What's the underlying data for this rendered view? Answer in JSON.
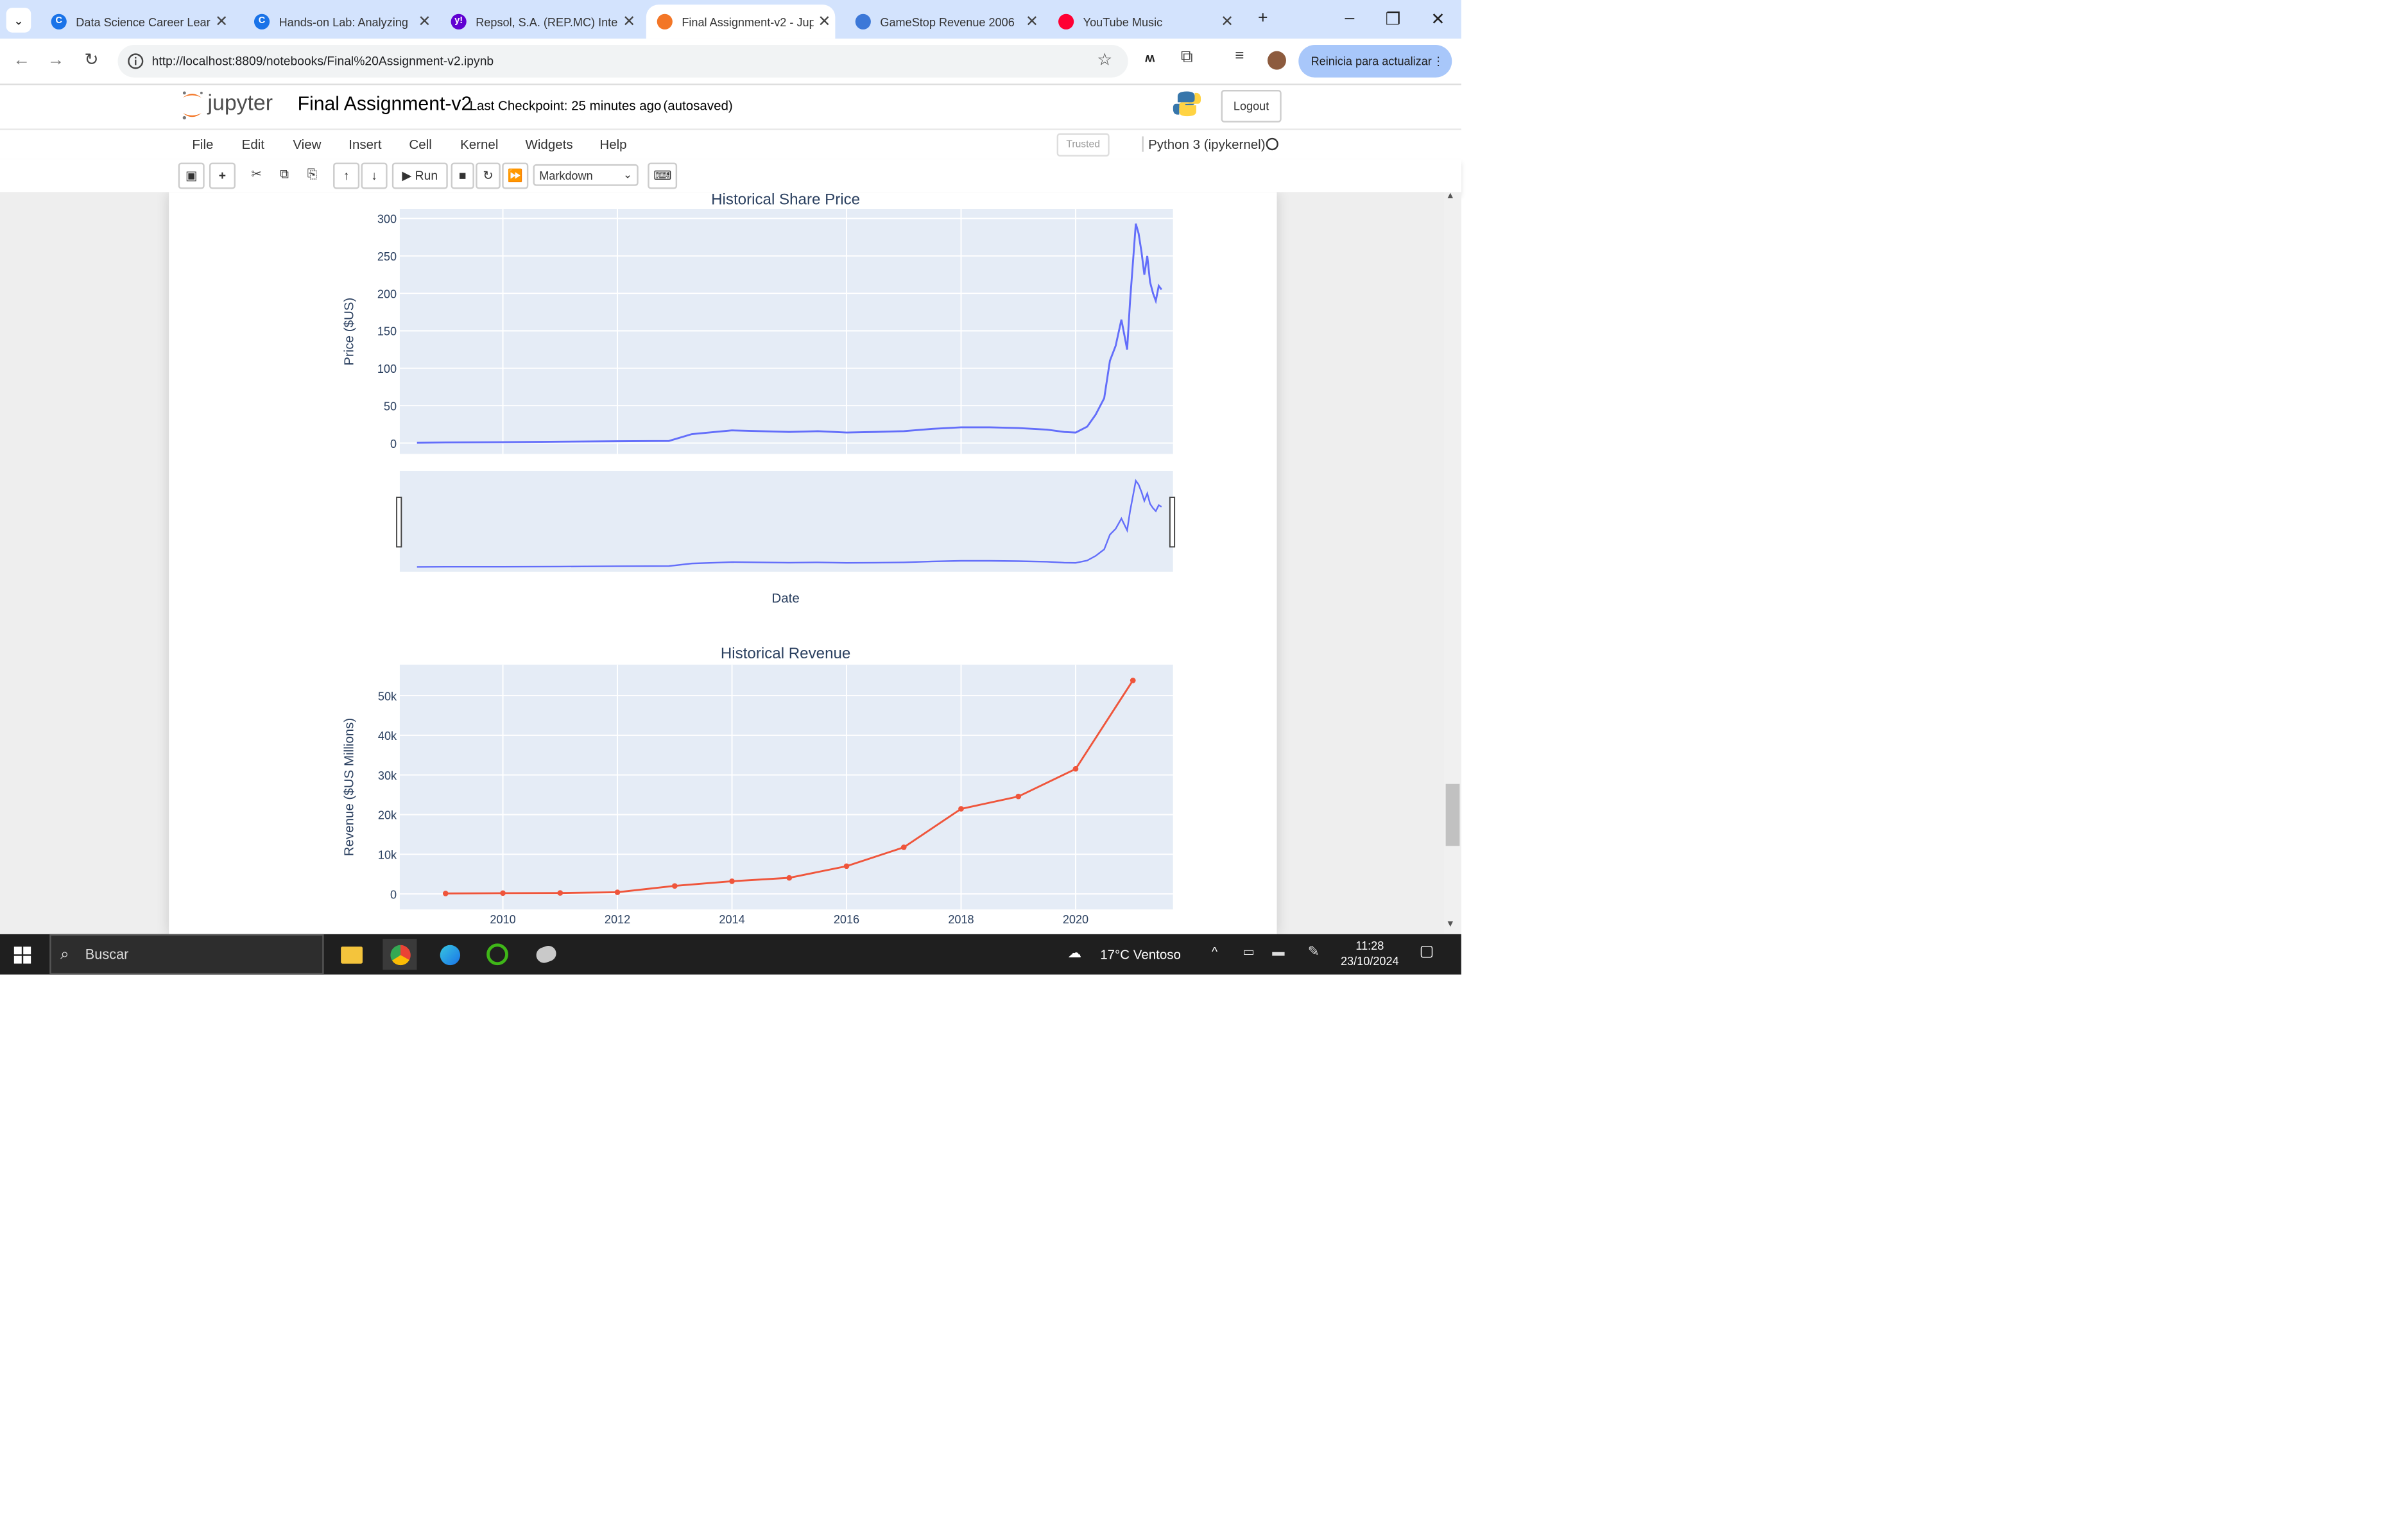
{
  "browser": {
    "tabs": [
      {
        "title": "Data Science Career Lear",
        "favicon_color": "#1a73e8",
        "favicon_glyph": "C",
        "active": false
      },
      {
        "title": "Hands-on Lab: Analyzing",
        "favicon_color": "#1a73e8",
        "favicon_glyph": "C",
        "active": false
      },
      {
        "title": "Repsol, S.A. (REP.MC) Inte",
        "favicon_color": "#6001d2",
        "favicon_glyph": "y!",
        "active": false
      },
      {
        "title": "Final Assignment-v2 - Jup",
        "favicon_color": "#f37626",
        "favicon_glyph": "",
        "active": true
      },
      {
        "title": "GameStop Revenue 2006",
        "favicon_color": "#3c78d8",
        "favicon_glyph": "",
        "active": false
      },
      {
        "title": "YouTube Music",
        "favicon_color": "#ff0033",
        "favicon_glyph": "",
        "active": false
      }
    ],
    "url": "http://localhost:8809/notebooks/Final%20Assignment-v2.ipynb",
    "update_button": "Reinicia para actualizar",
    "tab_search_icon": "chevron-down-icon",
    "colors": {
      "tabbar": "#d3e3fd",
      "update_button": "#a8c7fa"
    }
  },
  "jupyter": {
    "logo_text": "jupyter",
    "notebook_name": "Final Assignment-v2",
    "checkpoint": "Last Checkpoint: 25 minutes ago",
    "autosave": "(autosaved)",
    "logout": "Logout",
    "menu": [
      "File",
      "Edit",
      "View",
      "Insert",
      "Cell",
      "Kernel",
      "Widgets",
      "Help"
    ],
    "trusted": "Trusted",
    "kernel": "Python 3 (ipykernel)",
    "toolbar": {
      "run": "Run",
      "cell_type": "Markdown"
    }
  },
  "chart_data": [
    {
      "type": "line",
      "title": "Historical Share Price",
      "xlabel": "Date",
      "ylabel": "Price ($US)",
      "y_ticks": [
        "0",
        "50",
        "100",
        "150",
        "200",
        "250",
        "300"
      ],
      "ylim": [
        0,
        300
      ],
      "xlim": [
        2008.2,
        2021.7
      ],
      "line_color": "#636efa",
      "has_range_slider": true,
      "series": [
        {
          "x": [
            2008.5,
            2009.0,
            2010.0,
            2011.0,
            2012.0,
            2012.9,
            2013.3,
            2013.7,
            2014.0,
            2014.5,
            2015.0,
            2015.5,
            2016.0,
            2016.5,
            2017.0,
            2017.5,
            2018.0,
            2018.5,
            2019.0,
            2019.5,
            2019.8,
            2020.0,
            2020.2,
            2020.35,
            2020.5,
            2020.6,
            2020.7,
            2020.8,
            2020.9,
            2020.95,
            2021.0,
            2021.05,
            2021.1,
            2021.15,
            2021.2,
            2021.25,
            2021.3,
            2021.35,
            2021.4,
            2021.45,
            2021.5
          ],
          "y": [
            0.5,
            0.8,
            1.2,
            1.8,
            2.5,
            3,
            12,
            15,
            17,
            16,
            15,
            16,
            14,
            15,
            16,
            19,
            21,
            21,
            20,
            18,
            15,
            14,
            22,
            38,
            60,
            110,
            130,
            165,
            125,
            190,
            240,
            293,
            280,
            255,
            225,
            250,
            215,
            200,
            190,
            210,
            205
          ]
        }
      ]
    },
    {
      "type": "line",
      "title": "Historical Revenue",
      "xlabel": "",
      "ylabel": "Revenue ($US Millions)",
      "x_ticks": [
        "2010",
        "2012",
        "2014",
        "2016",
        "2018",
        "2020"
      ],
      "y_ticks": [
        "0",
        "10k",
        "20k",
        "30k",
        "40k",
        "50k"
      ],
      "xlim": [
        2008.2,
        2021.7
      ],
      "ylim": [
        0,
        56000
      ],
      "line_color": "#ef553b",
      "series": [
        {
          "x": [
            2009,
            2010,
            2011,
            2012,
            2013,
            2014,
            2015,
            2016,
            2017,
            2018,
            2019,
            2020,
            2021
          ],
          "y": [
            117,
            204,
            250,
            413,
            2013,
            3198,
            4046,
            7000,
            11759,
            21461,
            24578,
            31536,
            53823
          ]
        }
      ]
    }
  ],
  "taskbar": {
    "search_placeholder": "Buscar",
    "weather": "17°C  Ventoso",
    "time": "11:28",
    "date": "23/10/2024",
    "colors": {
      "taskbar": "#1f1f1f"
    }
  }
}
